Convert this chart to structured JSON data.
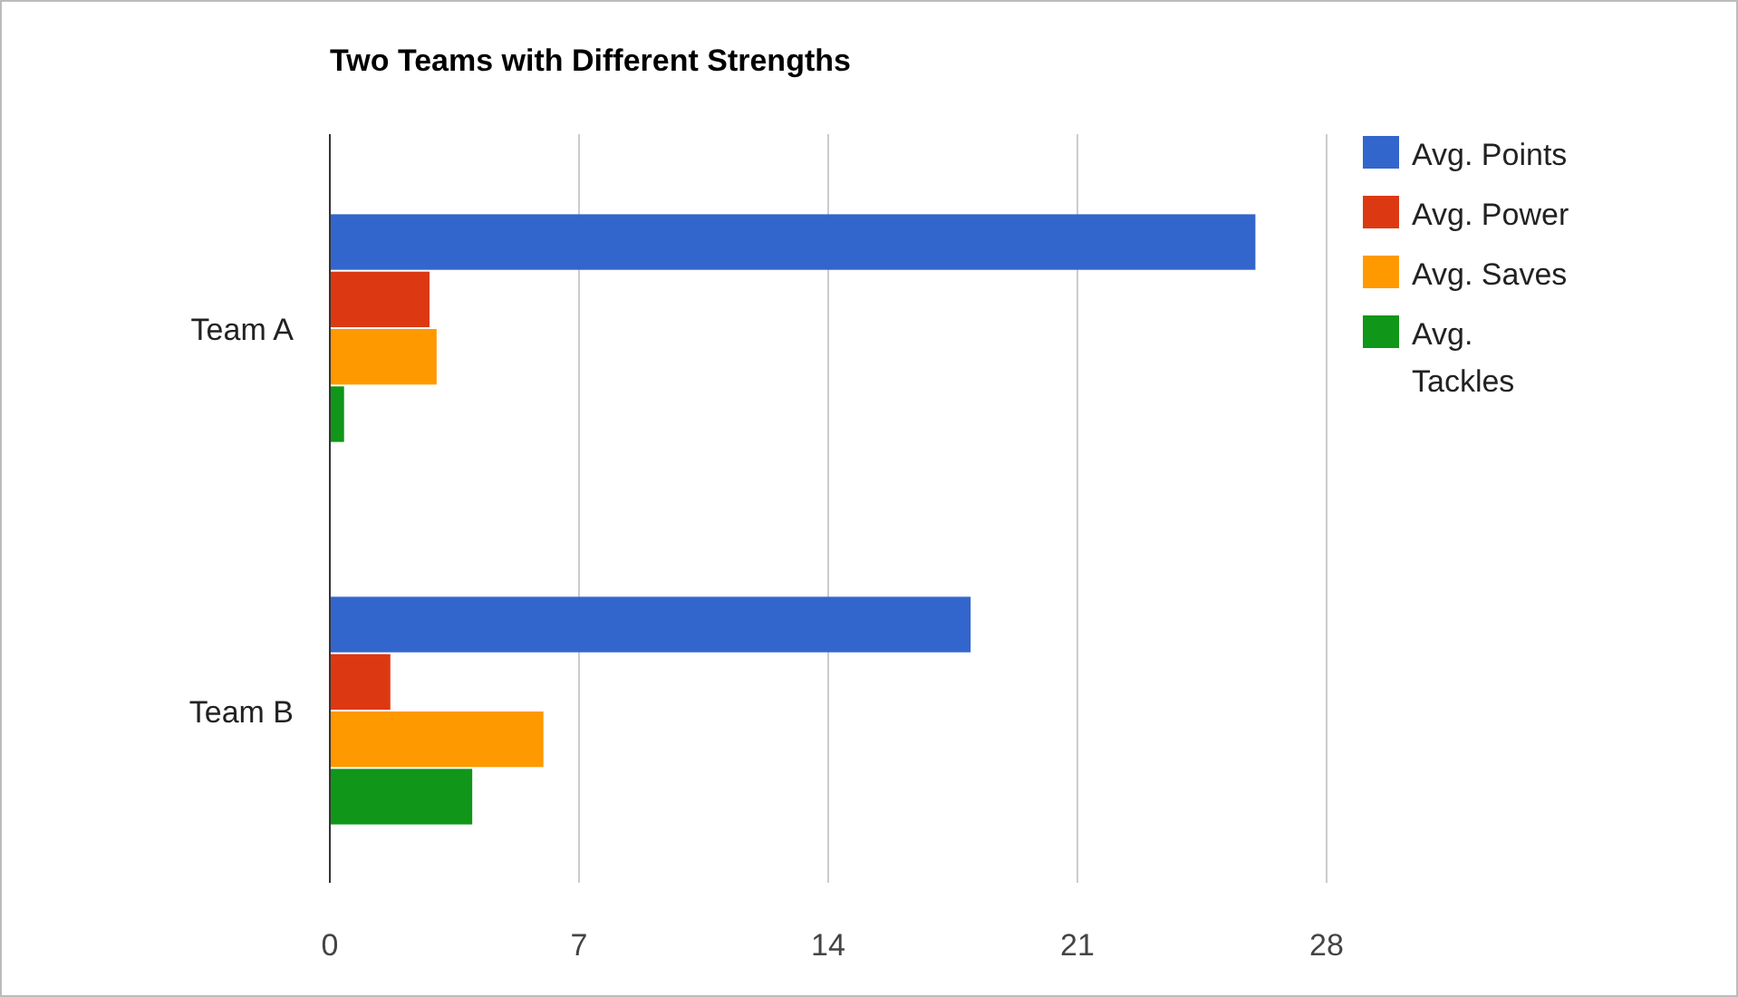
{
  "chart_data": {
    "type": "bar",
    "orientation": "horizontal",
    "title": "Two Teams with Different Strengths",
    "categories": [
      "Team A",
      "Team B"
    ],
    "series": [
      {
        "name": "Avg. Points",
        "color": "#3366cc",
        "values": [
          26,
          18
        ]
      },
      {
        "name": "Avg. Power",
        "color": "#dc3912",
        "values": [
          2.8,
          1.7
        ]
      },
      {
        "name": "Avg. Saves",
        "color": "#ff9900",
        "values": [
          3,
          6
        ]
      },
      {
        "name": "Avg. Tackles",
        "color": "#109618",
        "values": [
          0.4,
          4
        ]
      }
    ],
    "xlim": [
      0,
      28
    ],
    "xticks": [
      0,
      7,
      14,
      21,
      28
    ],
    "grid": "x",
    "legend": "right"
  }
}
